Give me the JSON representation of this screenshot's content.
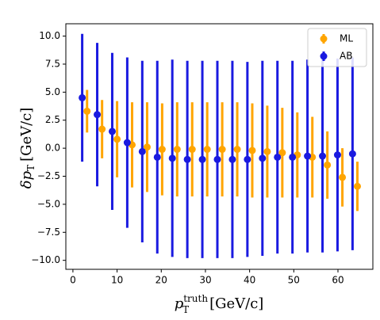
{
  "chart_data": {
    "type": "scatter",
    "xlabel": {
      "main": "p",
      "sup": "truth",
      "sub": "T",
      "rest": "[GeV/c]"
    },
    "ylabel": {
      "main": "δp",
      "sub": "T",
      "rest": "[GeV/c]"
    },
    "xlim": [
      -1.6,
      67.9
    ],
    "ylim": [
      -10.8,
      11.1
    ],
    "xticks": [
      0,
      10,
      20,
      30,
      40,
      50,
      60
    ],
    "yticks": [
      {
        "value": -10,
        "label": "−10.0"
      },
      {
        "value": -7.5,
        "label": "−7.5"
      },
      {
        "value": -5,
        "label": "−5.0"
      },
      {
        "value": -2.5,
        "label": "−2.5"
      },
      {
        "value": 0,
        "label": "0.0"
      },
      {
        "value": 2.5,
        "label": "2.5"
      },
      {
        "value": 5,
        "label": "5.0"
      },
      {
        "value": 7.5,
        "label": "7.5"
      },
      {
        "value": 10,
        "label": "10.0"
      }
    ],
    "legend": "upper right",
    "series": [
      {
        "name": "ML",
        "color": "#ffa500",
        "x": [
          3.2,
          6.6,
          10.0,
          13.4,
          16.8,
          20.2,
          23.6,
          27.0,
          30.4,
          33.8,
          37.2,
          40.6,
          44.0,
          47.4,
          50.8,
          54.2,
          57.6,
          61.0,
          64.4
        ],
        "values": [
          3.3,
          1.7,
          0.8,
          0.3,
          0.1,
          -0.1,
          -0.1,
          -0.1,
          -0.1,
          -0.1,
          -0.1,
          -0.2,
          -0.3,
          -0.4,
          -0.6,
          -0.8,
          -1.5,
          -2.6,
          -3.4
        ],
        "errors": [
          1.9,
          2.6,
          3.4,
          3.8,
          4.0,
          4.1,
          4.2,
          4.2,
          4.2,
          4.2,
          4.2,
          4.2,
          4.1,
          4.0,
          3.8,
          3.6,
          3.0,
          2.6,
          2.2
        ]
      },
      {
        "name": "AB",
        "color": "#1a1ae0",
        "x": [
          2.1,
          5.5,
          8.9,
          12.3,
          15.7,
          19.1,
          22.5,
          25.9,
          29.3,
          32.7,
          36.1,
          39.5,
          42.9,
          46.3,
          49.7,
          53.1,
          56.5,
          59.9,
          63.3
        ],
        "values": [
          4.5,
          3.0,
          1.5,
          0.5,
          -0.3,
          -0.8,
          -0.9,
          -1.0,
          -1.0,
          -1.0,
          -1.0,
          -1.0,
          -0.9,
          -0.8,
          -0.8,
          -0.7,
          -0.7,
          -0.6,
          -0.5
        ],
        "errors": [
          5.7,
          6.4,
          7.0,
          7.6,
          8.1,
          8.6,
          8.8,
          8.8,
          8.8,
          8.8,
          8.8,
          8.7,
          8.7,
          8.6,
          8.6,
          8.6,
          8.6,
          8.6,
          8.6
        ]
      }
    ]
  }
}
